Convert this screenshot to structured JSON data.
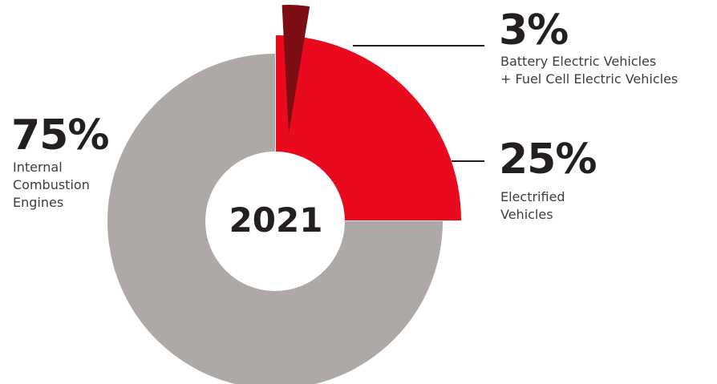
{
  "chart_data": {
    "type": "pie",
    "style": "exploded donut",
    "center_label": "2021",
    "colors": {
      "ice": "#aea9a6",
      "electrified": "#ea0a1e",
      "bev_fcev": "#7e0c13",
      "leader": "#231f20",
      "text": "#231f20"
    },
    "slices": [
      {
        "value": 75,
        "label": "75%",
        "description": "Internal\nCombustion\nEngines",
        "color": "#aea9a6"
      },
      {
        "value": 25,
        "label": "25%",
        "description": "Electrified\nVehicles",
        "color": "#ea0a1e"
      },
      {
        "value": 3,
        "label": "3%",
        "description": "Battery Electric Vehicles\n+ Fuel Cell Electric Vehicles",
        "color": "#7e0c13"
      }
    ]
  }
}
